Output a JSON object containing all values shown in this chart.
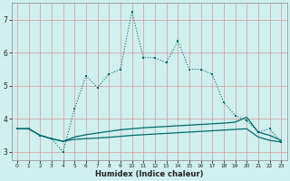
{
  "xlabel": "Humidex (Indice chaleur)",
  "bg_color": "#cff0ee",
  "grid_color": "#d4a8a8",
  "line_color": "#006b6b",
  "xlim": [
    -0.5,
    23.5
  ],
  "ylim": [
    2.75,
    7.5
  ],
  "x_main": [
    0,
    1,
    2,
    3,
    4,
    5,
    6,
    7,
    8,
    9,
    10,
    11,
    12,
    13,
    14,
    15,
    16,
    17,
    18,
    19,
    20,
    21,
    22,
    23
  ],
  "y_main": [
    3.7,
    3.7,
    3.5,
    3.4,
    3.0,
    4.3,
    5.3,
    4.95,
    5.35,
    5.5,
    7.25,
    5.85,
    5.85,
    5.7,
    6.35,
    5.5,
    5.5,
    5.35,
    4.5,
    4.1,
    3.95,
    3.6,
    3.7,
    3.3
  ],
  "y_line2": [
    3.7,
    3.7,
    3.5,
    3.4,
    3.32,
    3.45,
    3.52,
    3.57,
    3.62,
    3.67,
    3.7,
    3.73,
    3.75,
    3.77,
    3.79,
    3.81,
    3.83,
    3.85,
    3.87,
    3.9,
    4.05,
    3.6,
    3.5,
    3.35
  ],
  "y_line3": [
    3.7,
    3.7,
    3.5,
    3.4,
    3.32,
    3.38,
    3.4,
    3.42,
    3.44,
    3.47,
    3.5,
    3.52,
    3.54,
    3.56,
    3.58,
    3.6,
    3.62,
    3.64,
    3.66,
    3.68,
    3.7,
    3.45,
    3.35,
    3.3
  ],
  "yticks": [
    3,
    4,
    5,
    6,
    7
  ],
  "xticks": [
    0,
    1,
    2,
    3,
    4,
    5,
    6,
    7,
    8,
    9,
    10,
    11,
    12,
    13,
    14,
    15,
    16,
    17,
    18,
    19,
    20,
    21,
    22,
    23
  ]
}
